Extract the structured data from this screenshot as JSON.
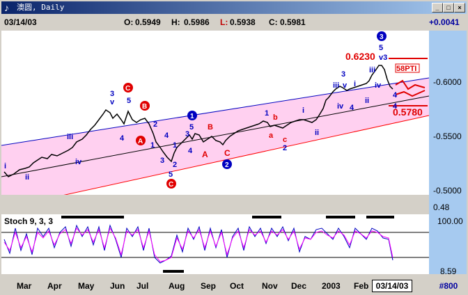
{
  "window": {
    "icon": "chart-app-icon",
    "title": "澳圆, Daily",
    "buttons": {
      "minimize": "_",
      "maximize": "□",
      "close": "×"
    }
  },
  "quote": {
    "date": "03/14/03",
    "open_label": "O:",
    "open": "0.5949",
    "high_label": "H:",
    "high": "0.5986",
    "low_label": "L:",
    "low": "0.5938",
    "close_label": "C:",
    "close": "0.5981",
    "change": "+0.0041"
  },
  "price_axis": {
    "ticks": [
      "-0.6000",
      "-0.5500",
      "-0.5000",
      "0.48"
    ]
  },
  "stoch": {
    "title": "Stoch 9, 3, 3",
    "ticks": [
      "100.00",
      "8.59"
    ]
  },
  "annotations": {
    "high_target": "0.6230",
    "low_target": "0.5780",
    "pti_label": "58PTI",
    "wave_v3": "v3"
  },
  "waves": {
    "c1": "C",
    "b1": "B",
    "a1": "A",
    "c2": "C",
    "n1": "1",
    "n2": "2",
    "n3": "3",
    "a2": "A",
    "b2": "B",
    "c3": "C",
    "a3": "a",
    "b3": "b",
    "c4": "c",
    "i1": "i",
    "ii1": "ii",
    "iii1": "iii",
    "iv1": "iv",
    "v1": "v",
    "s3": "3",
    "s4": "4",
    "s5": "5",
    "s1": "1",
    "s2": "2",
    "s3b": "3",
    "s4b": "4",
    "s5b": "5",
    "s5c": "5",
    "s2c": "2",
    "s3c": "3",
    "s4c": "4",
    "m1": "1",
    "m2": "2",
    "mi": "i",
    "mii": "ii",
    "u3": "3",
    "uiii": "iii",
    "uv": "v",
    "uiv": "iv",
    "u4": "4",
    "ui": "i",
    "uii": "ii",
    "tiii": "iii",
    "tiv": "iv",
    "t4": "4",
    "t5": "5"
  },
  "x_axis": {
    "months": [
      "Mar",
      "Apr",
      "May",
      "Jun",
      "Jul",
      "Aug",
      "Sep",
      "Oct",
      "Nov",
      "Dec",
      "2003",
      "Feb"
    ],
    "current_date": "03/14/03",
    "bar_count": "#800"
  }
}
